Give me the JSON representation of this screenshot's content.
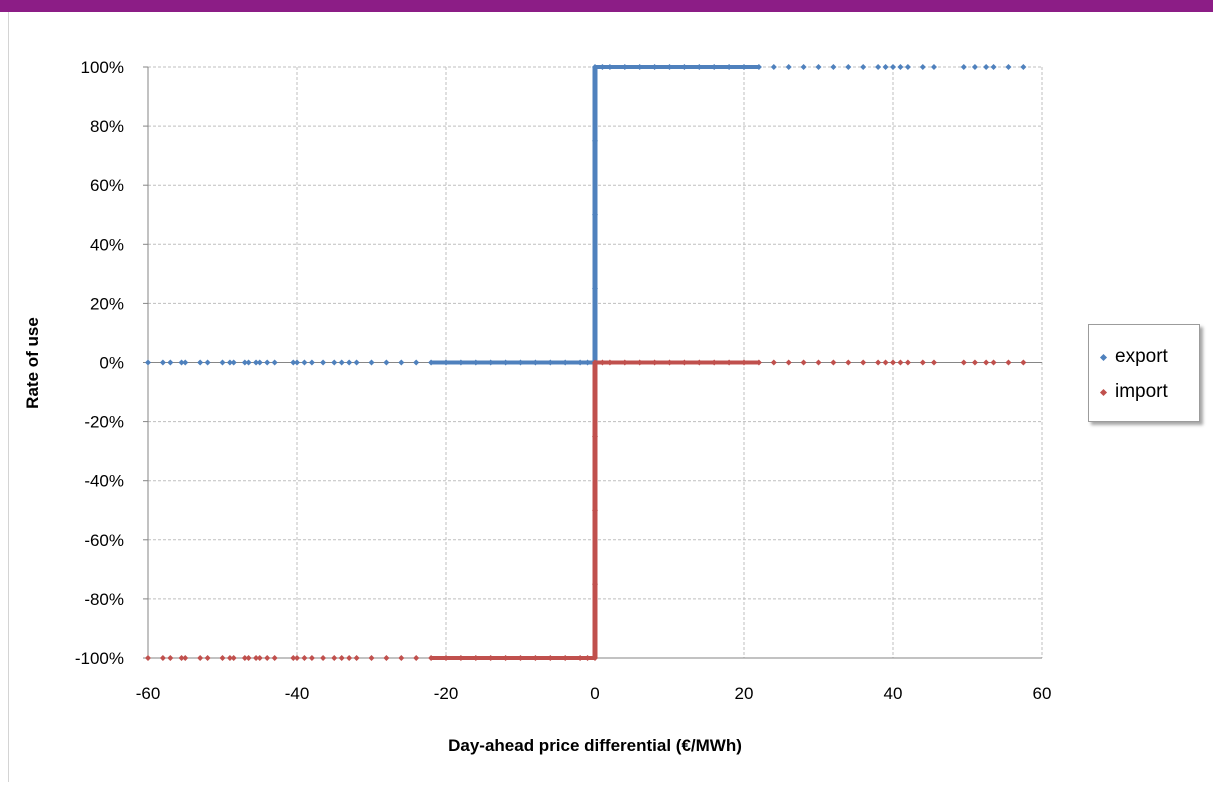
{
  "chart_data": {
    "type": "scatter",
    "title": "",
    "xlabel": "Day-ahead  price  differential  (€/MWh)",
    "ylabel": "Rate of use",
    "xlim": [
      -60,
      60
    ],
    "ylim": [
      -1,
      1
    ],
    "x_ticks": [
      "-60",
      "-40",
      "-20",
      "0",
      "20",
      "40",
      "60"
    ],
    "y_ticks": [
      "100%",
      "80%",
      "60%",
      "40%",
      "20%",
      "0%",
      "-20%",
      "-40%",
      "-60%",
      "-80%",
      "-100%"
    ],
    "grid": true,
    "legend_position": "right",
    "series": [
      {
        "name": "export",
        "color": "#4f81bd",
        "points": [
          [
            -60,
            0
          ],
          [
            -58,
            0
          ],
          [
            -57,
            0
          ],
          [
            -55.5,
            0
          ],
          [
            -55,
            0
          ],
          [
            -53,
            0
          ],
          [
            -52,
            0
          ],
          [
            -50,
            0
          ],
          [
            -49,
            0
          ],
          [
            -48.5,
            0
          ],
          [
            -47,
            0
          ],
          [
            -46.5,
            0
          ],
          [
            -45.5,
            0
          ],
          [
            -45,
            0
          ],
          [
            -44,
            0
          ],
          [
            -43,
            0
          ],
          [
            -40.5,
            0
          ],
          [
            -40,
            0
          ],
          [
            -39,
            0
          ],
          [
            -38,
            0
          ],
          [
            -36.5,
            0
          ],
          [
            -35,
            0
          ],
          [
            -34,
            0
          ],
          [
            -33,
            0
          ],
          [
            -32,
            0
          ],
          [
            -30,
            0
          ],
          [
            -28,
            0
          ],
          [
            -26,
            0
          ],
          [
            -24,
            0
          ],
          [
            -22,
            0
          ],
          [
            -20,
            0
          ],
          [
            -18,
            0
          ],
          [
            -16,
            0
          ],
          [
            -14,
            0
          ],
          [
            -12,
            0
          ],
          [
            -10,
            0
          ],
          [
            -8,
            0
          ],
          [
            -6,
            0
          ],
          [
            -4,
            0
          ],
          [
            -2,
            0
          ],
          [
            -1,
            0
          ],
          [
            0,
            0
          ],
          [
            0,
            0.25
          ],
          [
            0,
            0.5
          ],
          [
            0,
            0.75
          ],
          [
            0,
            1
          ],
          [
            1,
            1
          ],
          [
            2,
            1
          ],
          [
            4,
            1
          ],
          [
            6,
            1
          ],
          [
            8,
            1
          ],
          [
            10,
            1
          ],
          [
            12,
            1
          ],
          [
            14,
            1
          ],
          [
            16,
            1
          ],
          [
            18,
            1
          ],
          [
            20,
            1
          ],
          [
            22,
            1
          ],
          [
            24,
            1
          ],
          [
            26,
            1
          ],
          [
            28,
            1
          ],
          [
            30,
            1
          ],
          [
            32,
            1
          ],
          [
            34,
            1
          ],
          [
            36,
            1
          ],
          [
            38,
            1
          ],
          [
            39,
            1
          ],
          [
            40,
            1
          ],
          [
            41,
            1
          ],
          [
            42,
            1
          ],
          [
            44,
            1
          ],
          [
            45.5,
            1
          ],
          [
            49.5,
            1
          ],
          [
            51,
            1
          ],
          [
            52.5,
            1
          ],
          [
            53.5,
            1
          ],
          [
            55.5,
            1
          ],
          [
            57.5,
            1
          ]
        ]
      },
      {
        "name": "import",
        "color": "#c0504d",
        "points": [
          [
            -60,
            -1
          ],
          [
            -58,
            -1
          ],
          [
            -57,
            -1
          ],
          [
            -55.5,
            -1
          ],
          [
            -55,
            -1
          ],
          [
            -53,
            -1
          ],
          [
            -52,
            -1
          ],
          [
            -50,
            -1
          ],
          [
            -49,
            -1
          ],
          [
            -48.5,
            -1
          ],
          [
            -47,
            -1
          ],
          [
            -46.5,
            -1
          ],
          [
            -45.5,
            -1
          ],
          [
            -45,
            -1
          ],
          [
            -44,
            -1
          ],
          [
            -43,
            -1
          ],
          [
            -40.5,
            -1
          ],
          [
            -40,
            -1
          ],
          [
            -39,
            -1
          ],
          [
            -38,
            -1
          ],
          [
            -36.5,
            -1
          ],
          [
            -35,
            -1
          ],
          [
            -34,
            -1
          ],
          [
            -33,
            -1
          ],
          [
            -32,
            -1
          ],
          [
            -30,
            -1
          ],
          [
            -28,
            -1
          ],
          [
            -26,
            -1
          ],
          [
            -24,
            -1
          ],
          [
            -22,
            -1
          ],
          [
            -20,
            -1
          ],
          [
            -18,
            -1
          ],
          [
            -16,
            -1
          ],
          [
            -14,
            -1
          ],
          [
            -12,
            -1
          ],
          [
            -10,
            -1
          ],
          [
            -8,
            -1
          ],
          [
            -6,
            -1
          ],
          [
            -4,
            -1
          ],
          [
            -2,
            -1
          ],
          [
            -1,
            -1
          ],
          [
            0,
            -1
          ],
          [
            0,
            -0.75
          ],
          [
            0,
            -0.5
          ],
          [
            0,
            -0.25
          ],
          [
            0,
            0
          ],
          [
            1,
            0
          ],
          [
            2,
            0
          ],
          [
            4,
            0
          ],
          [
            6,
            0
          ],
          [
            8,
            0
          ],
          [
            10,
            0
          ],
          [
            12,
            0
          ],
          [
            14,
            0
          ],
          [
            16,
            0
          ],
          [
            18,
            0
          ],
          [
            20,
            0
          ],
          [
            22,
            0
          ],
          [
            24,
            0
          ],
          [
            26,
            0
          ],
          [
            28,
            0
          ],
          [
            30,
            0
          ],
          [
            32,
            0
          ],
          [
            34,
            0
          ],
          [
            36,
            0
          ],
          [
            38,
            0
          ],
          [
            39,
            0
          ],
          [
            40,
            0
          ],
          [
            41,
            0
          ],
          [
            42,
            0
          ],
          [
            44,
            0
          ],
          [
            45.5,
            0
          ],
          [
            49.5,
            0
          ],
          [
            51,
            0
          ],
          [
            52.5,
            0
          ],
          [
            53.5,
            0
          ],
          [
            55.5,
            0
          ],
          [
            57.5,
            0
          ]
        ]
      }
    ]
  },
  "legend": {
    "items": [
      {
        "label": "export",
        "color": "#4f81bd"
      },
      {
        "label": "import",
        "color": "#c0504d"
      }
    ]
  },
  "colors": {
    "banner": "#8c1d86",
    "grid": "#bfbfbf",
    "axis": "#868686"
  }
}
